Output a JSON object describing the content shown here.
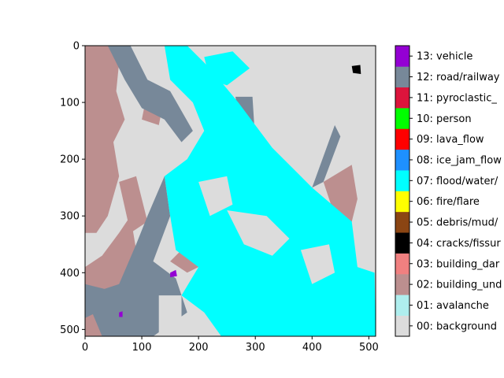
{
  "chart_data": {
    "type": "heatmap",
    "title": "",
    "xlabel": "",
    "ylabel": "",
    "image_size": [
      512,
      512
    ],
    "xlim": [
      0,
      512
    ],
    "ylim": [
      512,
      0
    ],
    "x_ticks": [
      0,
      100,
      200,
      300,
      400,
      500
    ],
    "y_ticks": [
      0,
      100,
      200,
      300,
      400,
      500
    ],
    "legend_placement": "right (colorbar)",
    "grid": false,
    "classes": [
      {
        "id": 0,
        "label": "00: background",
        "color": "#dcdcdc"
      },
      {
        "id": 1,
        "label": "01: avalanche",
        "color": "#afeeee"
      },
      {
        "id": 2,
        "label": "02: building_und",
        "color": "#bc8f8f"
      },
      {
        "id": 3,
        "label": "03: building_dar",
        "color": "#f08080"
      },
      {
        "id": 4,
        "label": "04: cracks/fissur",
        "color": "#000000"
      },
      {
        "id": 5,
        "label": "05: debris/mud/",
        "color": "#8b4513"
      },
      {
        "id": 6,
        "label": "06: fire/flare",
        "color": "#ffff00"
      },
      {
        "id": 7,
        "label": "07: flood/water/",
        "color": "#00ffff"
      },
      {
        "id": 8,
        "label": "08: ice_jam_flow",
        "color": "#1e90ff"
      },
      {
        "id": 9,
        "label": "09: lava_flow",
        "color": "#ff0000"
      },
      {
        "id": 10,
        "label": "10: person",
        "color": "#00ff00"
      },
      {
        "id": 11,
        "label": "11: pyroclastic_",
        "color": "#dc143c"
      },
      {
        "id": 12,
        "label": "12: road/railway",
        "color": "#778899"
      },
      {
        "id": 13,
        "label": "13: vehicle",
        "color": "#9400d3"
      }
    ],
    "regions": [
      {
        "class": 2,
        "points": [
          [
            0,
            0
          ],
          [
            40,
            0
          ],
          [
            60,
            30
          ],
          [
            55,
            80
          ],
          [
            70,
            130
          ],
          [
            50,
            170
          ],
          [
            60,
            230
          ],
          [
            40,
            300
          ],
          [
            20,
            330
          ],
          [
            0,
            330
          ]
        ]
      },
      {
        "class": 2,
        "points": [
          [
            0,
            390
          ],
          [
            30,
            370
          ],
          [
            60,
            330
          ],
          [
            80,
            300
          ],
          [
            90,
            360
          ],
          [
            60,
            430
          ],
          [
            30,
            512
          ],
          [
            0,
            512
          ]
        ]
      },
      {
        "class": 2,
        "points": [
          [
            60,
            240
          ],
          [
            90,
            230
          ],
          [
            110,
            310
          ],
          [
            80,
            330
          ]
        ]
      },
      {
        "class": 2,
        "points": [
          [
            150,
            380
          ],
          [
            200,
            330
          ],
          [
            220,
            380
          ],
          [
            180,
            400
          ]
        ]
      },
      {
        "class": 2,
        "points": [
          [
            110,
            80
          ],
          [
            140,
            90
          ],
          [
            130,
            140
          ],
          [
            100,
            130
          ]
        ]
      },
      {
        "class": 2,
        "points": [
          [
            420,
            240
          ],
          [
            470,
            210
          ],
          [
            480,
            270
          ],
          [
            460,
            350
          ],
          [
            440,
            300
          ]
        ]
      },
      {
        "class": 12,
        "points": [
          [
            0,
            440
          ],
          [
            60,
            420
          ],
          [
            90,
            350
          ],
          [
            110,
            300
          ],
          [
            140,
            230
          ],
          [
            150,
            300
          ],
          [
            120,
            380
          ],
          [
            160,
            410
          ],
          [
            180,
            470
          ],
          [
            120,
            512
          ],
          [
            30,
            512
          ]
        ]
      },
      {
        "class": 12,
        "points": [
          [
            40,
            0
          ],
          [
            80,
            0
          ],
          [
            110,
            60
          ],
          [
            150,
            80
          ],
          [
            190,
            150
          ],
          [
            170,
            170
          ],
          [
            140,
            130
          ],
          [
            100,
            110
          ],
          [
            70,
            60
          ]
        ]
      },
      {
        "class": 12,
        "points": [
          [
            330,
            240
          ],
          [
            400,
            250
          ],
          [
            440,
            320
          ],
          [
            470,
            400
          ],
          [
            450,
            420
          ],
          [
            420,
            370
          ],
          [
            380,
            300
          ],
          [
            340,
            280
          ]
        ]
      },
      {
        "class": 12,
        "points": [
          [
            440,
            140
          ],
          [
            450,
            160
          ],
          [
            420,
            240
          ],
          [
            400,
            250
          ]
        ]
      },
      {
        "class": 12,
        "points": [
          [
            265,
            90
          ],
          [
            295,
            90
          ],
          [
            300,
            170
          ],
          [
            320,
            230
          ],
          [
            300,
            240
          ],
          [
            280,
            180
          ]
        ]
      },
      {
        "class": 7,
        "points": [
          [
            140,
            0
          ],
          [
            180,
            0
          ],
          [
            220,
            40
          ],
          [
            270,
            100
          ],
          [
            330,
            180
          ],
          [
            400,
            250
          ],
          [
            470,
            310
          ],
          [
            480,
            390
          ],
          [
            510,
            400
          ],
          [
            512,
            512
          ],
          [
            240,
            512
          ],
          [
            210,
            470
          ],
          [
            170,
            440
          ],
          [
            200,
            390
          ],
          [
            160,
            360
          ],
          [
            150,
            300
          ],
          [
            140,
            230
          ],
          [
            180,
            200
          ],
          [
            210,
            150
          ],
          [
            190,
            100
          ],
          [
            150,
            60
          ]
        ]
      },
      {
        "class": 7,
        "points": [
          [
            210,
            20
          ],
          [
            260,
            10
          ],
          [
            290,
            40
          ],
          [
            250,
            70
          ],
          [
            220,
            60
          ]
        ]
      },
      {
        "class": 7,
        "points": [
          [
            255,
            160
          ],
          [
            300,
            170
          ],
          [
            320,
            220
          ],
          [
            300,
            260
          ],
          [
            270,
            230
          ]
        ]
      },
      {
        "class": 7,
        "points": [
          [
            220,
            390
          ],
          [
            280,
            360
          ],
          [
            320,
            400
          ],
          [
            290,
            440
          ],
          [
            240,
            430
          ]
        ]
      },
      {
        "class": 0,
        "points": [
          [
            250,
            290
          ],
          [
            320,
            300
          ],
          [
            360,
            340
          ],
          [
            330,
            370
          ],
          [
            280,
            350
          ]
        ]
      },
      {
        "class": 0,
        "points": [
          [
            380,
            360
          ],
          [
            430,
            350
          ],
          [
            440,
            400
          ],
          [
            400,
            420
          ]
        ]
      },
      {
        "class": 0,
        "points": [
          [
            200,
            240
          ],
          [
            250,
            230
          ],
          [
            260,
            280
          ],
          [
            220,
            300
          ]
        ]
      },
      {
        "class": 0,
        "points": [
          [
            130,
            440
          ],
          [
            170,
            440
          ],
          [
            170,
            512
          ],
          [
            130,
            512
          ]
        ]
      },
      {
        "class": 12,
        "points": [
          [
            0,
            420
          ],
          [
            40,
            430
          ],
          [
            20,
            470
          ],
          [
            0,
            480
          ]
        ]
      },
      {
        "class": 4,
        "points": [
          [
            470,
            36
          ],
          [
            485,
            34
          ],
          [
            486,
            50
          ],
          [
            472,
            48
          ]
        ]
      },
      {
        "class": 13,
        "points": [
          [
            150,
            400
          ],
          [
            160,
            395
          ],
          [
            162,
            406
          ],
          [
            150,
            408
          ]
        ]
      },
      {
        "class": 13,
        "points": [
          [
            60,
            470
          ],
          [
            66,
            468
          ],
          [
            66,
            478
          ],
          [
            60,
            478
          ]
        ]
      }
    ]
  }
}
